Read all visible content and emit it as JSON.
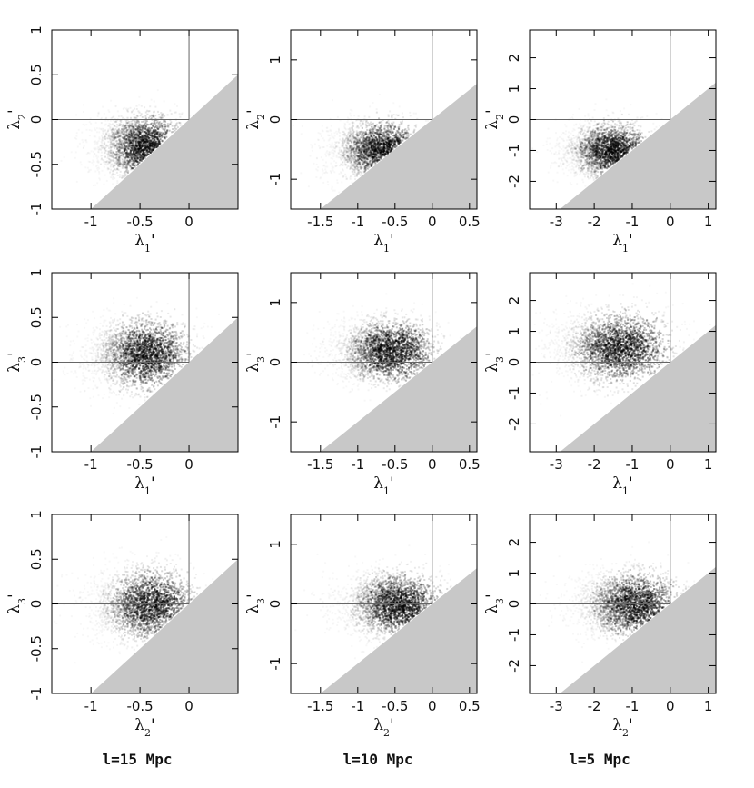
{
  "colors": {
    "forbidden_region": "#c8c8c8",
    "density": "#000000",
    "frame": "#000000",
    "reference_lines": "#666666"
  },
  "captions": [
    "l=15 Mpc",
    "l=10 Mpc",
    "l=5 Mpc"
  ],
  "chart_data": [
    {
      "type": "heatmap",
      "panel": "row1-col1",
      "xlabel": "λ1'",
      "ylabel": "λ2'",
      "xlim": [
        -1.4,
        0.5
      ],
      "ylim": [
        -1.0,
        1.0
      ],
      "xticks": [
        -1,
        -0.5,
        0
      ],
      "xtick_labels": [
        "-1",
        "-0.5",
        "0"
      ],
      "yticks": [
        -1,
        -0.5,
        0,
        0.5,
        1
      ],
      "ytick_labels": [
        "-1",
        "-0.5",
        "0",
        "0.5",
        "1"
      ],
      "reference_lines": {
        "x": 0,
        "y": 0
      },
      "forbidden_region": "y < x",
      "density_peak": [
        -0.4,
        -0.3
      ],
      "spread": 0.4
    },
    {
      "type": "heatmap",
      "panel": "row1-col2",
      "xlabel": "λ1'",
      "ylabel": "λ2'",
      "xlim": [
        -1.9,
        0.6
      ],
      "ylim": [
        -1.5,
        1.5
      ],
      "xticks": [
        -1.5,
        -1,
        -0.5,
        0,
        0.5
      ],
      "xtick_labels": [
        "-1.5",
        "-1",
        "-0.5",
        "0",
        "0.5"
      ],
      "yticks": [
        -1,
        0,
        1
      ],
      "ytick_labels": [
        "-1",
        "0",
        "1"
      ],
      "reference_lines": {
        "x": 0,
        "y": 0
      },
      "forbidden_region": "y < x",
      "density_peak": [
        -0.6,
        -0.5
      ],
      "spread": 0.55
    },
    {
      "type": "heatmap",
      "panel": "row1-col3",
      "xlabel": "λ1'",
      "ylabel": "λ2'",
      "xlim": [
        -3.7,
        1.2
      ],
      "ylim": [
        -2.9,
        2.9
      ],
      "xticks": [
        -3,
        -2,
        -1,
        0,
        1
      ],
      "xtick_labels": [
        "-3",
        "-2",
        "-1",
        "0",
        "1"
      ],
      "yticks": [
        -2,
        -1,
        0,
        1,
        2
      ],
      "ytick_labels": [
        "-2",
        "-1",
        "0",
        "1",
        "2"
      ],
      "reference_lines": {
        "x": 0,
        "y": 0
      },
      "forbidden_region": "y < x",
      "density_peak": [
        -1.4,
        -1.0
      ],
      "spread": 1.0
    },
    {
      "type": "heatmap",
      "panel": "row2-col1",
      "xlabel": "λ1'",
      "ylabel": "λ3'",
      "xlim": [
        -1.4,
        0.5
      ],
      "ylim": [
        -1.0,
        1.0
      ],
      "xticks": [
        -1,
        -0.5,
        0
      ],
      "xtick_labels": [
        "-1",
        "-0.5",
        "0"
      ],
      "yticks": [
        -1,
        -0.5,
        0,
        0.5,
        1
      ],
      "ytick_labels": [
        "-1",
        "-0.5",
        "0",
        "0.5",
        "1"
      ],
      "reference_lines": {
        "x": 0,
        "y": 0
      },
      "forbidden_region": "y < x",
      "density_peak": [
        -0.4,
        0.1
      ],
      "spread": 0.45
    },
    {
      "type": "heatmap",
      "panel": "row2-col2",
      "xlabel": "λ1'",
      "ylabel": "λ3'",
      "xlim": [
        -1.9,
        0.6
      ],
      "ylim": [
        -1.5,
        1.5
      ],
      "xticks": [
        -1.5,
        -1,
        -0.5,
        0,
        0.5
      ],
      "xtick_labels": [
        "-1.5",
        "-1",
        "-0.5",
        "0",
        "0.5"
      ],
      "yticks": [
        -1,
        0,
        1
      ],
      "ytick_labels": [
        "-1",
        "0",
        "1"
      ],
      "reference_lines": {
        "x": 0,
        "y": 0
      },
      "forbidden_region": "y < x",
      "density_peak": [
        -0.5,
        0.2
      ],
      "spread": 0.6
    },
    {
      "type": "heatmap",
      "panel": "row2-col3",
      "xlabel": "λ1'",
      "ylabel": "λ3'",
      "xlim": [
        -3.7,
        1.2
      ],
      "ylim": [
        -2.9,
        2.9
      ],
      "xticks": [
        -3,
        -2,
        -1,
        0,
        1
      ],
      "xtick_labels": [
        "-3",
        "-2",
        "-1",
        "0",
        "1"
      ],
      "yticks": [
        -2,
        -1,
        0,
        1,
        2
      ],
      "ytick_labels": [
        "-2",
        "-1",
        "0",
        "1",
        "2"
      ],
      "reference_lines": {
        "x": 0,
        "y": 0
      },
      "forbidden_region": "y < x",
      "density_peak": [
        -1.2,
        0.5
      ],
      "spread": 1.3
    },
    {
      "type": "heatmap",
      "panel": "row3-col1",
      "xlabel": "λ2'",
      "ylabel": "λ3'",
      "xlim": [
        -1.4,
        0.5
      ],
      "ylim": [
        -1.0,
        1.0
      ],
      "xticks": [
        -1,
        -0.5,
        0
      ],
      "xtick_labels": [
        "-1",
        "-0.5",
        "0"
      ],
      "yticks": [
        -1,
        -0.5,
        0,
        0.5,
        1
      ],
      "ytick_labels": [
        "-1",
        "-0.5",
        "0",
        "0.5",
        "1"
      ],
      "reference_lines": {
        "x": 0,
        "y": 0
      },
      "forbidden_region": "y < x",
      "density_peak": [
        -0.35,
        0.0
      ],
      "spread": 0.45
    },
    {
      "type": "heatmap",
      "panel": "row3-col2",
      "xlabel": "λ2'",
      "ylabel": "λ3'",
      "xlim": [
        -1.9,
        0.6
      ],
      "ylim": [
        -1.5,
        1.5
      ],
      "xticks": [
        -1.5,
        -1,
        -0.5,
        0,
        0.5
      ],
      "xtick_labels": [
        "-1.5",
        "-1",
        "-0.5",
        "0",
        "0.5"
      ],
      "yticks": [
        -1,
        0,
        1
      ],
      "ytick_labels": [
        "-1",
        "0",
        "1"
      ],
      "reference_lines": {
        "x": 0,
        "y": 0
      },
      "forbidden_region": "y < x",
      "density_peak": [
        -0.4,
        0.0
      ],
      "spread": 0.6
    },
    {
      "type": "heatmap",
      "panel": "row3-col3",
      "xlabel": "λ2'",
      "ylabel": "λ3'",
      "xlim": [
        -3.7,
        1.2
      ],
      "ylim": [
        -2.9,
        2.9
      ],
      "xticks": [
        -3,
        -2,
        -1,
        0,
        1
      ],
      "xtick_labels": [
        "-3",
        "-2",
        "-1",
        "0",
        "1"
      ],
      "yticks": [
        -2,
        -1,
        0,
        1,
        2
      ],
      "ytick_labels": [
        "-2",
        "-1",
        "0",
        "1",
        "2"
      ],
      "reference_lines": {
        "x": 0,
        "y": 0
      },
      "forbidden_region": "y < x",
      "density_peak": [
        -0.8,
        0.0
      ],
      "spread": 1.2
    }
  ]
}
